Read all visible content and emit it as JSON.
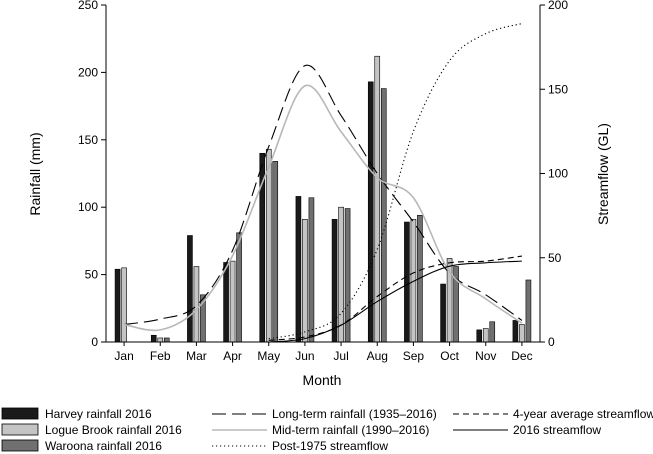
{
  "chart_data": {
    "type": "bar",
    "xlabel": "Month",
    "ylabel": "Rainfall (mm)",
    "y2label": "Streamflow (GL)",
    "ylim": [
      0,
      250
    ],
    "y2lim": [
      0,
      200
    ],
    "yticks": [
      "0",
      "50",
      "100",
      "150",
      "200",
      "250"
    ],
    "y2ticks": [
      "0",
      "50",
      "100",
      "150",
      "200"
    ],
    "categories": [
      "Jan",
      "Feb",
      "Mar",
      "Apr",
      "May",
      "Jun",
      "Jul",
      "Aug",
      "Sep",
      "Oct",
      "Nov",
      "Dec"
    ],
    "bar_series": [
      {
        "name": "Harvey rainfall 2016",
        "color": "#1a1a1a",
        "values": [
          54,
          5,
          79,
          59,
          140,
          108,
          91,
          193,
          89,
          43,
          9,
          16
        ]
      },
      {
        "name": "Logue Brook rainfall 2016",
        "color": "#c4c4c4",
        "values": [
          55,
          3,
          56,
          60,
          143,
          91,
          100,
          212,
          91,
          62,
          10,
          13
        ]
      },
      {
        "name": "Waroona rainfall 2016",
        "color": "#707070",
        "values": [
          0,
          3,
          35,
          81,
          134,
          107,
          99,
          188,
          94,
          56,
          15,
          46
        ]
      }
    ],
    "line_series": [
      {
        "name": "Long-term rainfall (1935–2016)",
        "axis": "left",
        "style": "longdash",
        "color": "#000000",
        "values": [
          13,
          17,
          27,
          68,
          145,
          205,
          168,
          125,
          89,
          51,
          35,
          16
        ]
      },
      {
        "name": "Mid-term rainfall (1990–2016)",
        "axis": "left",
        "style": "solid",
        "color": "#b8b8b8",
        "values": [
          13,
          9,
          24,
          64,
          130,
          190,
          156,
          122,
          107,
          52,
          32,
          14
        ]
      },
      {
        "name": "Post-1975 streamflow",
        "axis": "right",
        "style": "dotted",
        "color": "#000000",
        "values": [
          null,
          null,
          null,
          null,
          2,
          6,
          17,
          55,
          125,
          167,
          183,
          189
        ]
      },
      {
        "name": "4-year average streamflow",
        "axis": "right",
        "style": "shortdash",
        "color": "#000000",
        "values": [
          null,
          null,
          null,
          null,
          1,
          3,
          10,
          27,
          41,
          47,
          48,
          51
        ]
      },
      {
        "name": "2016 streamflow",
        "axis": "right",
        "style": "solid",
        "color": "#000000",
        "values": [
          null,
          null,
          null,
          null,
          0,
          2,
          10,
          24,
          36,
          45,
          47,
          48
        ]
      }
    ],
    "legend_position": "bottom",
    "grid": false
  }
}
